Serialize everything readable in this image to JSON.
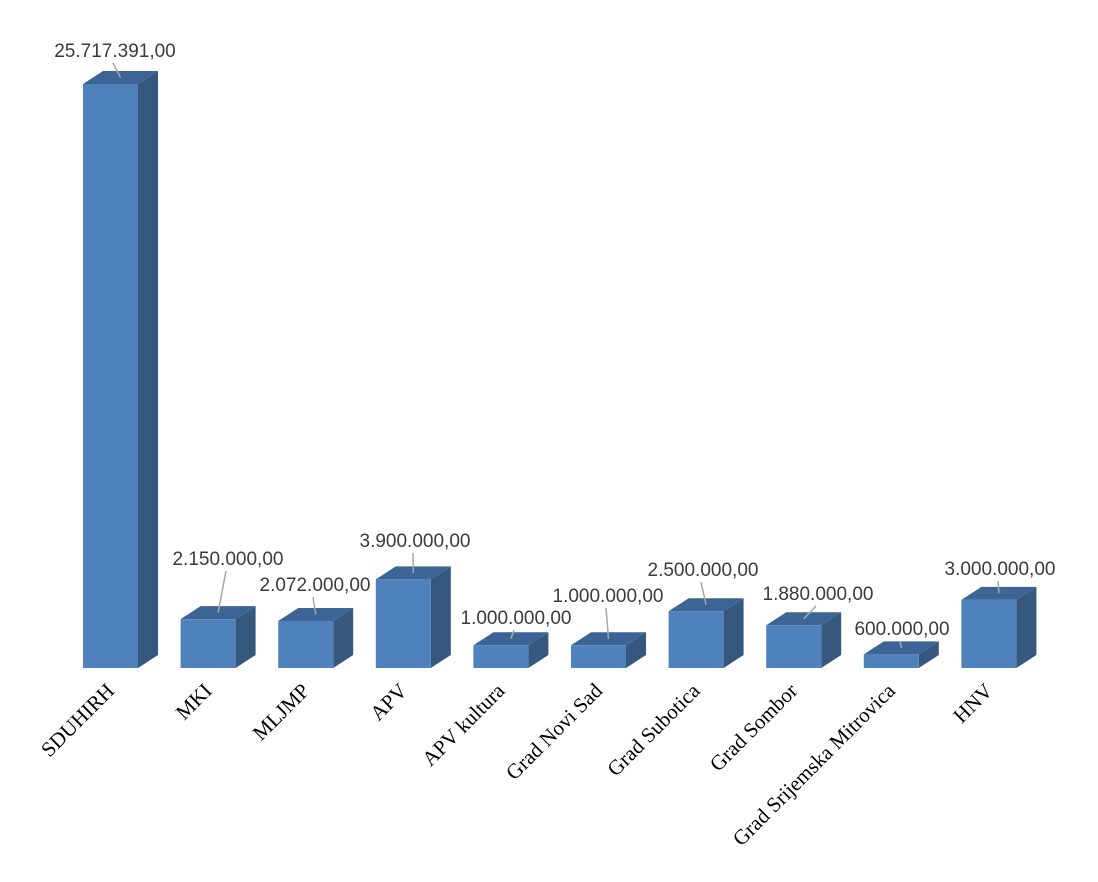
{
  "chart_data": {
    "type": "bar",
    "style": "3d-column",
    "title": "",
    "xlabel": "",
    "ylabel": "",
    "categories": [
      "SDUHIRH",
      "MKI",
      "MLJMP",
      "APV",
      "APV kultura",
      "Grad Novi Sad",
      "Grad Subotica",
      "Grad Sombor",
      "Grad Srijemska Mitrovica",
      "HNV"
    ],
    "values": [
      25717391,
      2150000,
      2072000,
      3900000,
      1000000,
      1000000,
      2500000,
      1880000,
      600000,
      3000000
    ],
    "data_labels": [
      "25.717.391,00",
      "2.150.000,00",
      "2.072.000,00",
      "3.900.000,00",
      "1.000.000,00",
      "1.000.000,00",
      "2.500.000,00",
      "1.880.000,00",
      "600.000,00",
      "3.000.000,00"
    ],
    "ylim": [
      0,
      25717391
    ],
    "grid": false,
    "legend": "none",
    "colors": {
      "front": "#4f81bd",
      "side": "#36587f",
      "top": "#3c6494"
    }
  }
}
